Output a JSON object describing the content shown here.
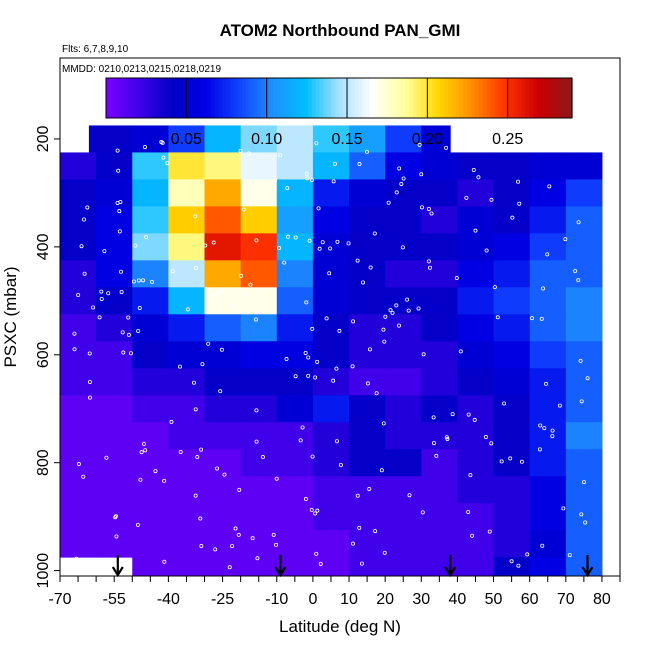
{
  "chart_data": {
    "type": "heatmap",
    "title": "ATOM2 Northbound PAN_GMI",
    "flights_note": "Flts: 6,7,8,9,10",
    "dates_note": "MMDD: 0210,0213,0215,0218,0219",
    "xlabel": "Latitude (deg N)",
    "ylabel": "PSXC (mbar)",
    "xlim": [
      -70,
      85
    ],
    "ylim": [
      1010,
      50
    ],
    "x_tick_labels": [
      "-70",
      "-55",
      "-40",
      "-25",
      "-10",
      "0",
      "10",
      "20",
      "30",
      "40",
      "50",
      "60",
      "70",
      "80"
    ],
    "x_tick_values": [
      -70,
      -55,
      -40,
      -25,
      -10,
      0,
      10,
      20,
      30,
      40,
      50,
      60,
      70,
      80
    ],
    "y_tick_labels": [
      "200",
      "400",
      "600",
      "800",
      "1000"
    ],
    "y_tick_values": [
      200,
      400,
      600,
      800,
      1000
    ],
    "colorbar": {
      "vmin": 0.0,
      "vmax": 0.29,
      "tick_labels": [
        "0.05",
        "0.10",
        "0.15",
        "0.20",
        "0.25"
      ],
      "tick_values": [
        0.05,
        0.1,
        0.15,
        0.2,
        0.25
      ]
    },
    "pressure_levels": [
      200,
      250,
      300,
      350,
      400,
      450,
      500,
      550,
      600,
      650,
      700,
      750,
      800,
      850,
      900,
      950,
      1000
    ],
    "latitude_bins": [
      -65,
      -55,
      -45,
      -35,
      -25,
      -15,
      -5,
      5,
      15,
      25,
      35,
      45,
      55,
      65,
      75
    ],
    "values": [
      [
        0.04,
        0.04,
        0.05,
        0.08,
        0.12,
        0.14,
        0.15,
        0.13,
        0.11,
        0.08,
        0.05,
        0.04,
        0.04,
        0.05,
        0.06
      ],
      [
        0.03,
        0.04,
        0.13,
        0.2,
        0.19,
        0.16,
        0.15,
        0.12,
        0.09,
        0.06,
        0.05,
        0.04,
        0.04,
        0.05,
        0.05
      ],
      [
        0.04,
        0.05,
        0.12,
        0.18,
        0.22,
        0.17,
        0.12,
        0.07,
        0.05,
        0.04,
        0.04,
        0.03,
        0.04,
        0.06,
        0.08
      ],
      [
        0.04,
        0.06,
        0.13,
        0.21,
        0.24,
        0.21,
        0.11,
        0.06,
        0.04,
        0.04,
        0.03,
        0.05,
        0.04,
        0.07,
        0.09
      ],
      [
        0.04,
        0.06,
        0.14,
        0.19,
        0.26,
        0.25,
        0.12,
        0.05,
        0.04,
        0.04,
        0.04,
        0.05,
        0.06,
        0.08,
        0.09
      ],
      [
        0.03,
        0.06,
        0.1,
        0.15,
        0.22,
        0.24,
        0.1,
        0.05,
        0.04,
        0.03,
        0.03,
        0.06,
        0.07,
        0.09,
        0.09
      ],
      [
        0.03,
        0.04,
        0.07,
        0.12,
        0.17,
        0.17,
        0.09,
        0.05,
        0.04,
        0.04,
        0.04,
        0.07,
        0.08,
        0.09,
        0.1
      ],
      [
        0.02,
        0.03,
        0.05,
        0.07,
        0.09,
        0.1,
        0.07,
        0.04,
        0.03,
        0.03,
        0.04,
        0.06,
        0.07,
        0.09,
        0.1
      ],
      [
        0.02,
        0.02,
        0.04,
        0.05,
        0.05,
        0.06,
        0.06,
        0.04,
        0.03,
        0.03,
        0.03,
        0.05,
        0.06,
        0.08,
        0.09
      ],
      [
        0.02,
        0.02,
        0.03,
        0.03,
        0.04,
        0.04,
        0.04,
        0.03,
        0.02,
        0.02,
        0.03,
        0.04,
        0.05,
        0.07,
        0.09
      ],
      [
        0.01,
        0.01,
        0.02,
        0.02,
        0.03,
        0.03,
        0.05,
        0.07,
        0.04,
        0.03,
        0.04,
        0.03,
        0.04,
        0.07,
        0.09
      ],
      [
        0.01,
        0.01,
        0.01,
        0.02,
        0.02,
        0.02,
        0.02,
        0.03,
        0.04,
        0.03,
        0.03,
        0.03,
        0.04,
        0.07,
        0.1
      ],
      [
        0.01,
        0.01,
        0.01,
        0.01,
        0.01,
        0.02,
        0.02,
        0.03,
        0.04,
        0.04,
        0.02,
        0.03,
        0.04,
        0.07,
        0.09
      ],
      [
        0.01,
        0.01,
        0.01,
        0.01,
        0.01,
        0.01,
        0.01,
        0.02,
        0.02,
        0.02,
        0.02,
        0.03,
        0.03,
        0.06,
        0.09
      ],
      [
        0.01,
        0.01,
        0.01,
        0.01,
        0.01,
        0.01,
        0.01,
        0.02,
        0.02,
        0.02,
        0.02,
        0.02,
        0.03,
        0.06,
        0.09
      ],
      [
        0.01,
        0.01,
        0.01,
        0.01,
        0.01,
        0.01,
        0.01,
        0.01,
        0.02,
        0.02,
        0.02,
        0.02,
        0.03,
        0.05,
        0.09
      ],
      [
        0.01,
        0.01,
        0.01,
        0.01,
        0.01,
        0.01,
        0.01,
        0.01,
        0.02,
        0.02,
        0.02,
        0.02,
        0.04,
        0.06,
        0.09
      ]
    ],
    "arrow_latitudes": [
      -54,
      -9,
      38,
      76
    ],
    "grid": false,
    "legend": "top"
  },
  "colors": {
    "colormap": [
      "#7b00ff",
      "#3e00e8",
      "#0000c8",
      "#0000e6",
      "#1044ff",
      "#1e90ff",
      "#00bfff",
      "#a8e0ff",
      "#ffffff",
      "#ffff99",
      "#ffd700",
      "#ff8c00",
      "#ff3300",
      "#cc0000",
      "#8b1a1a"
    ],
    "axis": "#000000",
    "dots": "#ffffff"
  }
}
